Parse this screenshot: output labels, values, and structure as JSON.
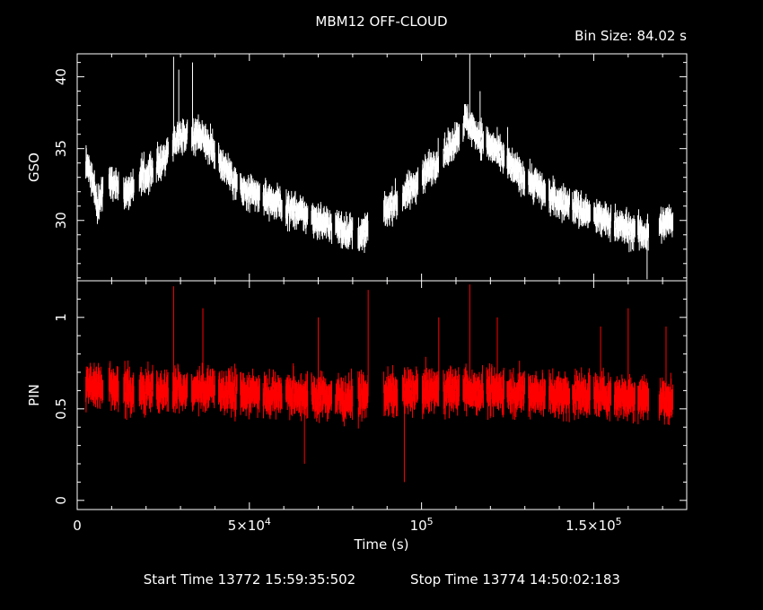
{
  "chart_data": {
    "type": "scatter",
    "title": "MBM12 OFF-CLOUD",
    "bin_size_label": "Bin Size: 84.02 s",
    "xlabel": "Time (s)",
    "x_range": [
      0,
      177000
    ],
    "x_ticks": [
      {
        "value": 0,
        "label": "0",
        "exp": ""
      },
      {
        "value": 50000,
        "label": "5×10",
        "exp": "4"
      },
      {
        "value": 100000,
        "label": "10",
        "exp": "5"
      },
      {
        "value": 150000,
        "label": "1.5×10",
        "exp": "5"
      }
    ],
    "footer": {
      "start": "Start Time 13772 15:59:35:502",
      "stop": "Stop Time 13774 14:50:02:183"
    },
    "panels": [
      {
        "name": "GSO",
        "ylabel": "GSO",
        "color": "#ffffff",
        "ylim": [
          25.8,
          41.6
        ],
        "yticks": [
          {
            "value": 30,
            "label": "30"
          },
          {
            "value": 35,
            "label": "35"
          },
          {
            "value": 40,
            "label": "40"
          }
        ],
        "noise": 0.9,
        "err": 0.6,
        "anchors": [
          [
            3000,
            34
          ],
          [
            6000,
            31
          ],
          [
            9000,
            33
          ],
          [
            14000,
            32
          ],
          [
            19000,
            33
          ],
          [
            24000,
            34
          ],
          [
            30000,
            36
          ],
          [
            36000,
            36
          ],
          [
            42000,
            34
          ],
          [
            48000,
            32
          ],
          [
            55000,
            31.5
          ],
          [
            62000,
            30.8
          ],
          [
            70000,
            30
          ],
          [
            78000,
            29.3
          ],
          [
            83000,
            29
          ],
          [
            87000,
            30
          ],
          [
            91000,
            31
          ],
          [
            96000,
            32
          ],
          [
            102000,
            33.5
          ],
          [
            108000,
            35
          ],
          [
            113000,
            37
          ],
          [
            116000,
            36
          ],
          [
            121000,
            35
          ],
          [
            127000,
            33.5
          ],
          [
            133000,
            32.5
          ],
          [
            138000,
            31.5
          ],
          [
            144000,
            31
          ],
          [
            150000,
            30.3
          ],
          [
            156000,
            29.8
          ],
          [
            161000,
            29.3
          ],
          [
            165000,
            29
          ],
          [
            168000,
            29.5
          ],
          [
            172000,
            30
          ]
        ],
        "gaps": [
          [
            7500,
            9200
          ],
          [
            12000,
            13500
          ],
          [
            16500,
            18000
          ],
          [
            22000,
            23000
          ],
          [
            26500,
            27700
          ],
          [
            32000,
            33200
          ],
          [
            40000,
            41000
          ],
          [
            46500,
            47300
          ],
          [
            53000,
            54000
          ],
          [
            59500,
            60500
          ],
          [
            67000,
            68000
          ],
          [
            74000,
            75000
          ],
          [
            80000,
            81500
          ],
          [
            84500,
            89000
          ],
          [
            93000,
            94500
          ],
          [
            99000,
            100200
          ],
          [
            105000,
            106300
          ],
          [
            111000,
            112000
          ],
          [
            118000,
            118800
          ],
          [
            124000,
            124800
          ],
          [
            130000,
            131000
          ],
          [
            136000,
            137000
          ],
          [
            143000,
            143800
          ],
          [
            149000,
            150000
          ],
          [
            155000,
            156000
          ],
          [
            162000,
            162800
          ],
          [
            166000,
            169000
          ]
        ],
        "spikes": [
          [
            28000,
            41.4
          ],
          [
            29500,
            40.5
          ],
          [
            33500,
            41
          ],
          [
            114000,
            41.6
          ],
          [
            117000,
            39
          ],
          [
            165500,
            25.9
          ],
          [
            125000,
            36.5
          ]
        ]
      },
      {
        "name": "PIN",
        "ylabel": "PIN",
        "color": "#ff0000",
        "ylim": [
          -0.05,
          1.2
        ],
        "yticks": [
          {
            "value": 0,
            "label": "0"
          },
          {
            "value": 0.5,
            "label": "0.5"
          },
          {
            "value": 1,
            "label": "1"
          }
        ],
        "noise": 0.09,
        "err": 0.06,
        "anchors": [
          [
            3000,
            0.62
          ],
          [
            20000,
            0.6
          ],
          [
            40000,
            0.6
          ],
          [
            60000,
            0.58
          ],
          [
            80000,
            0.56
          ],
          [
            100000,
            0.6
          ],
          [
            120000,
            0.6
          ],
          [
            140000,
            0.58
          ],
          [
            160000,
            0.57
          ],
          [
            172000,
            0.55
          ]
        ],
        "gaps": [
          [
            7500,
            9200
          ],
          [
            12000,
            13500
          ],
          [
            16500,
            18000
          ],
          [
            22000,
            23000
          ],
          [
            26500,
            27700
          ],
          [
            32000,
            33200
          ],
          [
            40000,
            41000
          ],
          [
            46500,
            47300
          ],
          [
            53000,
            54000
          ],
          [
            59500,
            60500
          ],
          [
            67000,
            68000
          ],
          [
            74000,
            75000
          ],
          [
            80000,
            81500
          ],
          [
            84500,
            89000
          ],
          [
            93000,
            94500
          ],
          [
            99000,
            100200
          ],
          [
            105000,
            106300
          ],
          [
            111000,
            112000
          ],
          [
            118000,
            118800
          ],
          [
            124000,
            124800
          ],
          [
            130000,
            131000
          ],
          [
            136000,
            137000
          ],
          [
            143000,
            143800
          ],
          [
            149000,
            150000
          ],
          [
            155000,
            156000
          ],
          [
            162000,
            162800
          ],
          [
            166000,
            169000
          ]
        ],
        "spikes": [
          [
            28000,
            1.17
          ],
          [
            36500,
            1.05
          ],
          [
            66000,
            0.2
          ],
          [
            70000,
            1.0
          ],
          [
            84500,
            1.15
          ],
          [
            95000,
            0.1
          ],
          [
            105000,
            1.0
          ],
          [
            114000,
            1.18
          ],
          [
            122000,
            1.0
          ],
          [
            152000,
            0.95
          ],
          [
            160000,
            1.05
          ],
          [
            171000,
            0.95
          ]
        ]
      }
    ]
  }
}
